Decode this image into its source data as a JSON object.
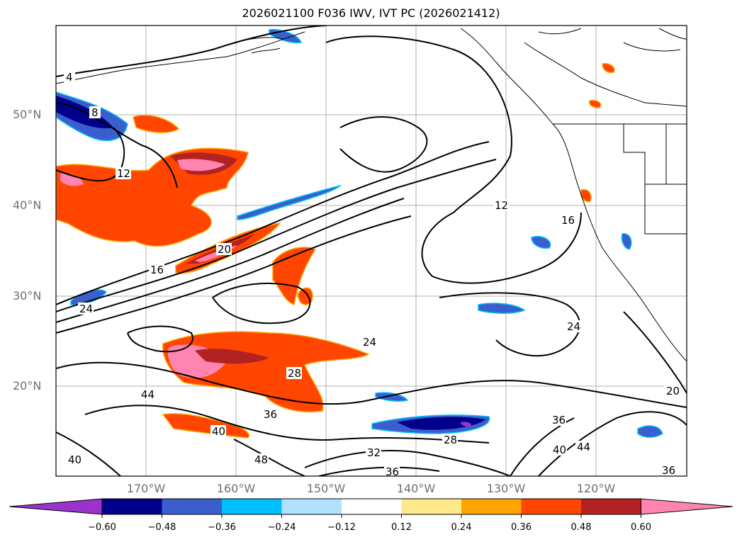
{
  "title": "2026021100 F036 IWV, IVT PC (2026021412)",
  "map": {
    "latitude_labels": [
      "50°N",
      "40°N",
      "30°N",
      "20°N"
    ],
    "longitude_labels": [
      "170°W",
      "160°W",
      "150°W",
      "140°W",
      "130°W",
      "120°W"
    ],
    "contour_labels": [
      "4",
      "8",
      "12",
      "16",
      "20",
      "24",
      "28",
      "32",
      "36",
      "40",
      "44",
      "48"
    ]
  },
  "colorbar": {
    "ticks": [
      "−0.60",
      "−0.48",
      "−0.36",
      "−0.24",
      "−0.12",
      "0.12",
      "0.24",
      "0.36",
      "0.48",
      "0.60"
    ],
    "colors": [
      "#9933cc",
      "#00008b",
      "#3a5fcd",
      "#00bfff",
      "#b0e2ff",
      "#ffffff",
      "#ffe98a",
      "#ffa500",
      "#ff4500",
      "#b22222",
      "#ff85b0"
    ],
    "land_line_color": "#000000"
  }
}
